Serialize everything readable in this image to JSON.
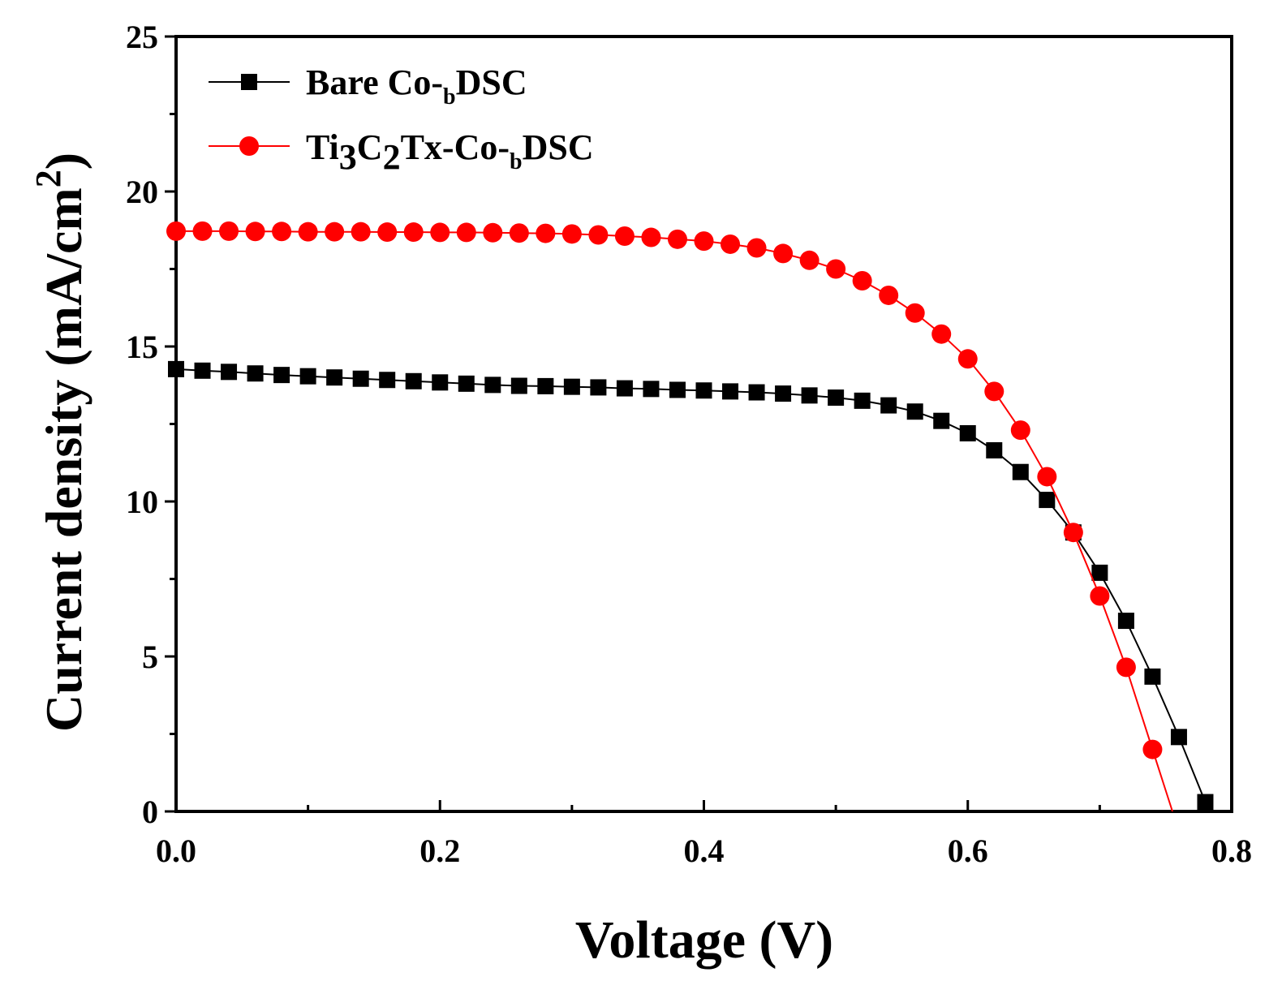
{
  "chart_data": {
    "type": "line",
    "title": "",
    "xlabel": "Voltage (V)",
    "ylabel": {
      "main": "Current density (mA/cm",
      "sup": "2",
      "close": ")"
    },
    "xlim": [
      0.0,
      0.8
    ],
    "ylim": [
      0,
      25
    ],
    "x_ticks": [
      "0.0",
      "0.2",
      "0.4",
      "0.6",
      "0.8"
    ],
    "y_ticks": [
      "0",
      "5",
      "10",
      "15",
      "20",
      "25"
    ],
    "grid": false,
    "legend_position": "top-left",
    "series": [
      {
        "name": "Bare Co-bDSC",
        "label_parts": {
          "a": "Bare Co-",
          "sub": "b",
          "b": "DSC"
        },
        "color": "#000000",
        "marker": "square",
        "x": [
          0.0,
          0.02,
          0.04,
          0.06,
          0.08,
          0.1,
          0.12,
          0.14,
          0.16,
          0.18,
          0.2,
          0.22,
          0.24,
          0.26,
          0.28,
          0.3,
          0.32,
          0.34,
          0.36,
          0.38,
          0.4,
          0.42,
          0.44,
          0.46,
          0.48,
          0.5,
          0.52,
          0.54,
          0.56,
          0.58,
          0.6,
          0.62,
          0.64,
          0.66,
          0.68,
          0.7,
          0.72,
          0.74,
          0.76,
          0.78
        ],
        "y": [
          14.27,
          14.22,
          14.18,
          14.13,
          14.08,
          14.04,
          14.0,
          13.96,
          13.92,
          13.88,
          13.84,
          13.8,
          13.76,
          13.73,
          13.72,
          13.7,
          13.68,
          13.65,
          13.63,
          13.6,
          13.58,
          13.55,
          13.52,
          13.48,
          13.42,
          13.35,
          13.25,
          13.1,
          12.9,
          12.6,
          12.2,
          11.65,
          10.95,
          10.05,
          9.0,
          7.7,
          6.15,
          4.35,
          2.4,
          0.3
        ]
      },
      {
        "name": "Ti3C2Tx-Co-bDSC",
        "label_parts": {
          "a": "Ti",
          "s1": "3",
          "b": "C",
          "s2": "2",
          "c": "Tx-Co-",
          "sub": "b",
          "d": "DSC"
        },
        "color": "#ff0000",
        "marker": "circle",
        "x": [
          0.0,
          0.02,
          0.04,
          0.06,
          0.08,
          0.1,
          0.12,
          0.14,
          0.16,
          0.18,
          0.2,
          0.22,
          0.24,
          0.26,
          0.28,
          0.3,
          0.32,
          0.34,
          0.36,
          0.38,
          0.4,
          0.42,
          0.44,
          0.46,
          0.48,
          0.5,
          0.52,
          0.54,
          0.56,
          0.58,
          0.6,
          0.62,
          0.64,
          0.66,
          0.68,
          0.7,
          0.72,
          0.74
        ],
        "y": [
          18.72,
          18.72,
          18.72,
          18.71,
          18.71,
          18.7,
          18.7,
          18.7,
          18.69,
          18.69,
          18.68,
          18.68,
          18.67,
          18.66,
          18.65,
          18.63,
          18.6,
          18.56,
          18.52,
          18.46,
          18.4,
          18.3,
          18.18,
          18.0,
          17.78,
          17.5,
          17.12,
          16.65,
          16.08,
          15.4,
          14.6,
          13.55,
          12.3,
          10.8,
          9.0,
          6.95,
          4.65,
          2.0
        ]
      }
    ]
  }
}
